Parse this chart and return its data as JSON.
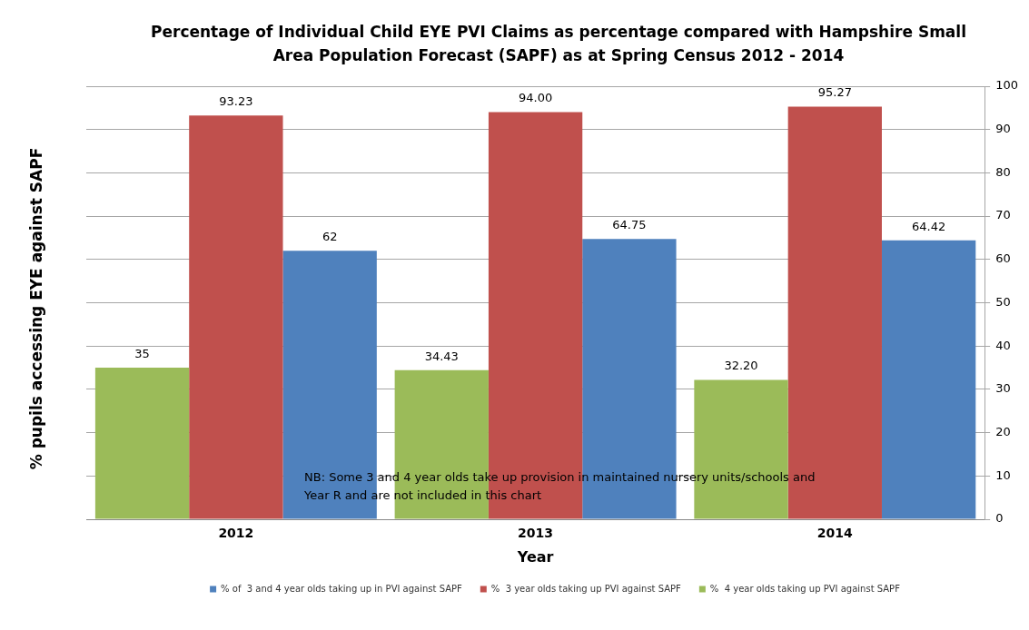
{
  "chart_data": {
    "type": "bar",
    "title": "Percentage of Individual Child EYE PVI Claims as percentage compared with Hampshire Small Area Population Forecast (SAPF)  as at Spring Census 2012 - 2014",
    "xlabel": "Year",
    "ylabel": "% pupils accessing EYE against SAPF",
    "categories": [
      "2012",
      "2013",
      "2014"
    ],
    "series": [
      {
        "name": "%  4 year olds taking up PVI against SAPF",
        "color": "#9bbb59",
        "values": [
          35,
          34.43,
          32.2
        ],
        "value_labels": [
          "35",
          "34.43",
          "32.20"
        ]
      },
      {
        "name": "%  3 year olds taking up PVI against SAPF",
        "color": "#c0504d",
        "values": [
          93.23,
          94,
          95.27
        ],
        "value_labels": [
          "93.23",
          "94.00",
          "95.27"
        ]
      },
      {
        "name": "% of  3 and 4 year olds taking up in PVI against SAPF",
        "color": "#4f81bd",
        "values": [
          62,
          64.75,
          64.42
        ],
        "value_labels": [
          "62",
          "64.75",
          "64.42"
        ]
      }
    ],
    "ylim": [
      0,
      100
    ],
    "yticks": [
      0,
      10,
      20,
      30,
      40,
      50,
      60,
      70,
      80,
      90,
      100
    ],
    "grid": "y",
    "legend": "bottom",
    "annotations": [
      "NB:  Some 3 and 4 year olds take up provision in maintained nursery units/schools and Year R and are not included in this chart"
    ]
  }
}
